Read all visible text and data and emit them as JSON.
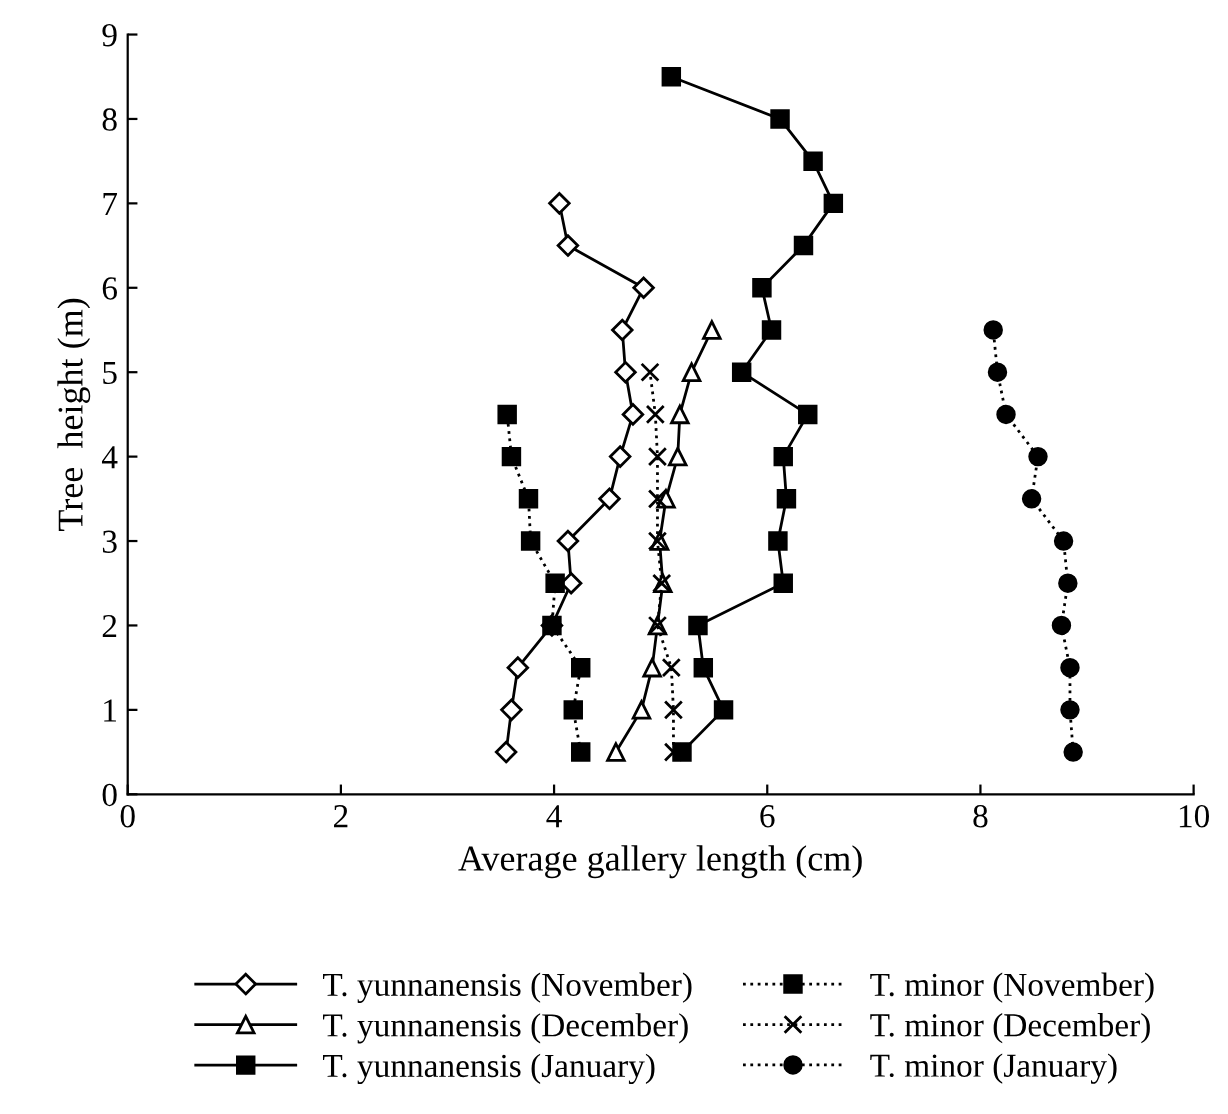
{
  "chart_data": {
    "type": "line",
    "xlabel": "Average gallery length (cm)",
    "ylabel": "Tree  height (m)",
    "xlim": [
      0,
      10
    ],
    "xticks": [
      0,
      2,
      4,
      6,
      8,
      10
    ],
    "ylim": [
      0,
      9
    ],
    "yticks": [
      0,
      1,
      2,
      3,
      4,
      5,
      6,
      7,
      8,
      9
    ],
    "grid": false,
    "legend": "bottom",
    "series": [
      {
        "name": "T. yunnanensis (November)",
        "color": "#000000",
        "marker": "diamond",
        "line_style": "solid",
        "x": [
          3.55,
          3.6,
          3.66,
          3.98,
          4.16,
          4.13,
          4.52,
          4.62,
          4.74,
          4.67,
          4.64,
          4.84,
          4.13,
          4.05
        ],
        "values": [
          0.5,
          1.0,
          1.5,
          2.0,
          2.5,
          3.0,
          3.5,
          4.0,
          4.5,
          5.0,
          5.5,
          6.0,
          6.5,
          7.0
        ]
      },
      {
        "name": "T. yunnanensis (December)",
        "color": "#000000",
        "marker": "triangle",
        "line_style": "solid",
        "x": [
          4.58,
          4.82,
          4.92,
          4.97,
          5.02,
          4.99,
          5.05,
          5.16,
          5.18,
          5.29,
          5.48
        ],
        "values": [
          0.5,
          1.0,
          1.5,
          2.0,
          2.5,
          3.0,
          3.5,
          4.0,
          4.5,
          5.0,
          5.5
        ]
      },
      {
        "name": "T. yunnanensis (January)",
        "color": "#000000",
        "marker": "square",
        "line_style": "solid",
        "x": [
          5.2,
          5.59,
          5.4,
          5.35,
          6.15,
          6.1,
          6.18,
          6.15,
          6.38,
          5.76,
          6.04,
          5.95,
          6.34,
          6.62,
          6.43,
          6.12,
          5.1
        ],
        "values": [
          0.5,
          1.0,
          1.5,
          2.0,
          2.5,
          3.0,
          3.5,
          4.0,
          4.5,
          5.0,
          5.5,
          6.0,
          6.5,
          7.0,
          7.5,
          8.0,
          8.5
        ]
      },
      {
        "name": "T. minor (November)",
        "color": "#000000",
        "marker": "square",
        "line_style": "dotted",
        "x": [
          4.25,
          4.18,
          4.25,
          3.98,
          4.01,
          3.78,
          3.76,
          3.6,
          3.56
        ],
        "values": [
          0.5,
          1.0,
          1.5,
          2.0,
          2.5,
          3.0,
          3.5,
          4.0,
          4.5
        ]
      },
      {
        "name": "T. minor (December)",
        "color": "#000000",
        "marker": "cross",
        "line_style": "dotted",
        "x": [
          5.12,
          5.12,
          5.1,
          4.97,
          5.01,
          4.97,
          4.97,
          4.97,
          4.95,
          4.9
        ],
        "values": [
          0.5,
          1.0,
          1.5,
          2.0,
          2.5,
          3.0,
          3.5,
          4.0,
          4.5,
          5.0
        ]
      },
      {
        "name": "T. minor (January)",
        "color": "#000000",
        "marker": "circle",
        "line_style": "dotted",
        "x": [
          8.87,
          8.84,
          8.84,
          8.76,
          8.82,
          8.78,
          8.48,
          8.54,
          8.24,
          8.16,
          8.12
        ],
        "values": [
          0.5,
          1.0,
          1.5,
          2.0,
          2.5,
          3.0,
          3.5,
          4.0,
          4.5,
          5.0,
          5.5
        ]
      }
    ]
  }
}
